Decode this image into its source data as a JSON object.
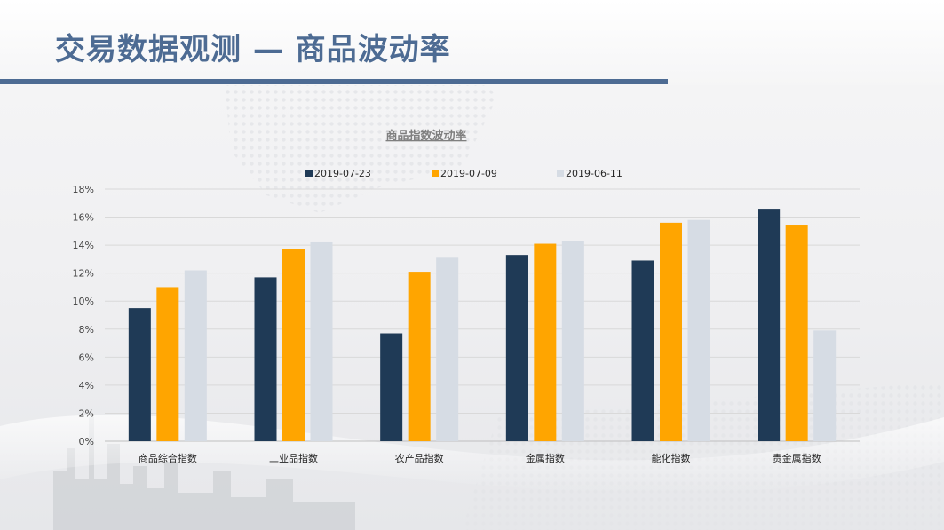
{
  "slide": {
    "title": "交易数据观测 — 商品波动率"
  },
  "colors": {
    "title": "#4d6b93",
    "rule": "#4d6b93"
  },
  "chart_data": {
    "type": "bar",
    "title": "商品指数波动率",
    "categories": [
      "商品综合指数",
      "工业品指数",
      "农产品指数",
      "金属指数",
      "能化指数",
      "贵金属指数"
    ],
    "series": [
      {
        "name": "2019-07-23",
        "color": "#1f3a56",
        "values": [
          9.5,
          11.7,
          7.7,
          13.3,
          12.9,
          16.6
        ]
      },
      {
        "name": "2019-07-09",
        "color": "#ffa500",
        "values": [
          11.0,
          13.7,
          12.1,
          14.1,
          15.6,
          15.4
        ]
      },
      {
        "name": "2019-06-11",
        "color": "#d6dce4",
        "values": [
          12.2,
          14.2,
          13.1,
          14.3,
          15.8,
          7.9
        ]
      }
    ],
    "ylim": [
      0,
      18
    ],
    "yticks": [
      "0%",
      "2%",
      "4%",
      "6%",
      "8%",
      "10%",
      "12%",
      "14%",
      "16%",
      "18%"
    ],
    "ytick_values": [
      0,
      2,
      4,
      6,
      8,
      10,
      12,
      14,
      16,
      18
    ],
    "grid": true,
    "legend_position": "top"
  }
}
